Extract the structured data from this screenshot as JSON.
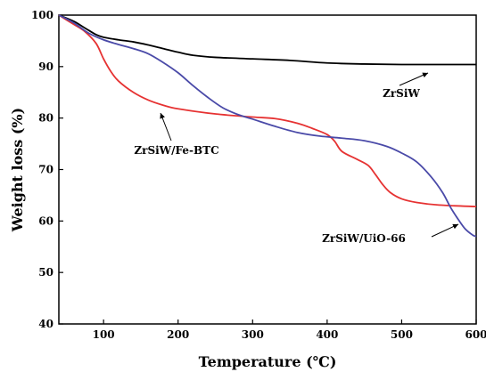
{
  "chart_data": {
    "type": "line",
    "xlabel": "Temperature (℃)",
    "ylabel": "Weight loss (%)",
    "xlim": [
      40,
      600
    ],
    "ylim": [
      40,
      100
    ],
    "xticks": [
      100,
      200,
      300,
      400,
      500,
      600
    ],
    "yticks": [
      40,
      50,
      60,
      70,
      80,
      90,
      100
    ],
    "grid": false,
    "legend": "none",
    "series": [
      {
        "name": "ZrSiW",
        "color": "#000000",
        "x": [
          40,
          60,
          75,
          90,
          100,
          120,
          140,
          160,
          180,
          200,
          220,
          250,
          300,
          350,
          400,
          450,
          500,
          550,
          600
        ],
        "y": [
          100,
          98.8,
          97.5,
          96.2,
          95.7,
          95.2,
          94.8,
          94.2,
          93.5,
          92.8,
          92.2,
          91.8,
          91.5,
          91.2,
          90.7,
          90.5,
          90.4,
          90.4,
          90.4
        ]
      },
      {
        "name": "ZrSiW/Fe-BTC",
        "color": "#e63232",
        "x": [
          40,
          60,
          75,
          90,
          100,
          110,
          120,
          140,
          160,
          180,
          200,
          250,
          300,
          330,
          360,
          380,
          400,
          410,
          420,
          440,
          455,
          465,
          475,
          485,
          500,
          520,
          550,
          600
        ],
        "y": [
          100,
          98.2,
          96.8,
          94.5,
          91.5,
          89,
          87.2,
          85,
          83.5,
          82.5,
          81.8,
          80.8,
          80.2,
          79.9,
          79,
          78,
          76.8,
          75.5,
          73.5,
          72,
          70.8,
          69,
          67,
          65.5,
          64.3,
          63.6,
          63.1,
          62.8
        ]
      },
      {
        "name": "ZrSiW/UiO-66",
        "color": "#4a4aa8",
        "x": [
          40,
          60,
          80,
          100,
          120,
          140,
          160,
          180,
          200,
          220,
          240,
          260,
          280,
          300,
          330,
          360,
          390,
          420,
          450,
          480,
          500,
          520,
          540,
          555,
          565,
          575,
          585,
          595,
          600
        ],
        "y": [
          100,
          98.5,
          96.5,
          95.2,
          94.3,
          93.5,
          92.5,
          90.8,
          88.8,
          86.3,
          84,
          82,
          80.7,
          79.8,
          78.4,
          77.2,
          76.5,
          76.1,
          75.6,
          74.5,
          73.2,
          71.5,
          68.5,
          65.5,
          62.8,
          60.5,
          58.5,
          57.3,
          57
        ]
      }
    ],
    "annotations": [
      {
        "text": "ZrSiW",
        "series": "ZrSiW"
      },
      {
        "text": "ZrSiW/Fe-BTC",
        "series": "ZrSiW/Fe-BTC"
      },
      {
        "text": "ZrSiW/UiO-66",
        "series": "ZrSiW/UiO-66"
      }
    ]
  }
}
